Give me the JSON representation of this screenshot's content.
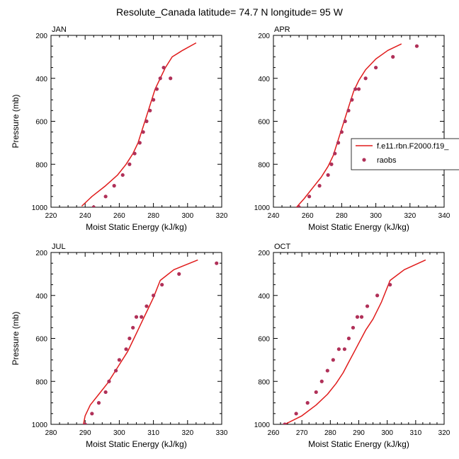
{
  "title": "Resolute_Canada  latitude= 74.7 N longitude= 95 W",
  "colors": {
    "model": "#e01b1b",
    "raobs": "#b03058",
    "axis": "#000000"
  },
  "chart_data": [
    {
      "type": "scatter",
      "panel": "JAN",
      "xlabel": "Moist Static Energy (kJ/kg)",
      "ylabel": "Pressure (mb)",
      "xlim": [
        220,
        320
      ],
      "ylim": [
        1000,
        200
      ],
      "yreversed": true,
      "xticks": [
        220,
        240,
        260,
        280,
        300,
        320
      ],
      "yticks": [
        200,
        400,
        600,
        800,
        1000
      ],
      "series": [
        {
          "kind": "line",
          "x": [
            238,
            244,
            252,
            259,
            264,
            268,
            271,
            273,
            275,
            277,
            279,
            281,
            284,
            287,
            291,
            297,
            305
          ],
          "y": [
            995,
            950,
            900,
            850,
            800,
            750,
            700,
            650,
            600,
            550,
            500,
            450,
            400,
            350,
            300,
            270,
            235
          ]
        },
        {
          "kind": "points",
          "x": [
            245,
            252,
            257,
            262,
            266,
            269,
            272,
            274,
            276,
            278,
            280,
            282,
            284,
            286,
            290
          ],
          "y": [
            1000,
            950,
            900,
            850,
            800,
            750,
            700,
            650,
            600,
            550,
            500,
            450,
            400,
            350,
            400
          ]
        }
      ]
    },
    {
      "type": "scatter",
      "panel": "APR",
      "xlabel": "Moist Static Energy (kJ/kg)",
      "ylabel": "",
      "xlim": [
        240,
        340
      ],
      "ylim": [
        1000,
        200
      ],
      "yreversed": true,
      "xticks": [
        240,
        260,
        280,
        300,
        320,
        340
      ],
      "yticks": [
        200,
        400,
        600,
        800,
        1000
      ],
      "legend": {
        "position": "right",
        "entries": [
          {
            "label": "f.e11.rbn.F2000.f19_",
            "kind": "line"
          },
          {
            "label": "raobs",
            "kind": "points"
          }
        ]
      },
      "series": [
        {
          "kind": "line",
          "x": [
            253,
            258,
            263,
            268,
            272,
            275,
            277,
            279,
            281,
            283,
            285,
            287,
            290,
            294,
            300,
            307,
            315
          ],
          "y": [
            1005,
            960,
            910,
            860,
            810,
            760,
            710,
            660,
            610,
            560,
            510,
            460,
            410,
            360,
            310,
            270,
            240
          ]
        },
        {
          "kind": "points",
          "x": [
            255,
            261,
            267,
            272,
            274,
            276,
            278,
            280,
            282,
            284,
            286,
            288,
            290,
            294,
            300,
            310,
            324
          ],
          "y": [
            1000,
            950,
            900,
            850,
            800,
            750,
            700,
            650,
            600,
            550,
            500,
            450,
            450,
            400,
            350,
            300,
            250
          ]
        }
      ]
    },
    {
      "type": "scatter",
      "panel": "JUL",
      "xlabel": "Moist Static Energy (kJ/kg)",
      "ylabel": "Pressure (mb)",
      "xlim": [
        280,
        330
      ],
      "ylim": [
        1000,
        200
      ],
      "yreversed": true,
      "xticks": [
        280,
        290,
        300,
        310,
        320,
        330
      ],
      "yticks": [
        200,
        400,
        600,
        800,
        1000
      ],
      "series": [
        {
          "kind": "line",
          "x": [
            289.5,
            290,
            291.5,
            294,
            296.5,
            298.5,
            300.5,
            302.5,
            304,
            305.5,
            307,
            308.5,
            310,
            312,
            316,
            323
          ],
          "y": [
            1000,
            960,
            910,
            860,
            810,
            760,
            710,
            660,
            610,
            560,
            510,
            460,
            410,
            330,
            280,
            235
          ]
        },
        {
          "kind": "points",
          "x": [
            290,
            292,
            294,
            296,
            297,
            299,
            300,
            302,
            303,
            304,
            305,
            306.5,
            308,
            310,
            312.5,
            317.5,
            328.5
          ],
          "y": [
            1000,
            950,
            900,
            850,
            800,
            750,
            700,
            650,
            600,
            550,
            500,
            500,
            450,
            400,
            350,
            300,
            250
          ]
        }
      ]
    },
    {
      "type": "scatter",
      "panel": "OCT",
      "xlabel": "Moist Static Energy (kJ/kg)",
      "ylabel": "",
      "xlim": [
        260,
        320
      ],
      "ylim": [
        1000,
        200
      ],
      "yreversed": true,
      "xticks": [
        260,
        270,
        280,
        290,
        300,
        310,
        320
      ],
      "yticks": [
        200,
        400,
        600,
        800,
        1000
      ],
      "series": [
        {
          "kind": "line",
          "x": [
            264,
            270,
            275,
            279,
            282,
            284.5,
            286.5,
            288.5,
            290.5,
            292.5,
            295,
            298,
            301,
            306,
            313.5
          ],
          "y": [
            1000,
            960,
            910,
            860,
            810,
            760,
            710,
            660,
            610,
            560,
            510,
            430,
            330,
            280,
            235
          ]
        },
        {
          "kind": "points",
          "x": [
            264,
            268,
            272,
            275,
            277,
            279,
            281,
            283,
            285,
            286.5,
            288,
            289.5,
            291,
            293,
            296.5,
            301
          ],
          "y": [
            1000,
            950,
            900,
            850,
            800,
            750,
            700,
            650,
            650,
            600,
            550,
            500,
            500,
            450,
            400,
            350
          ]
        }
      ]
    }
  ]
}
